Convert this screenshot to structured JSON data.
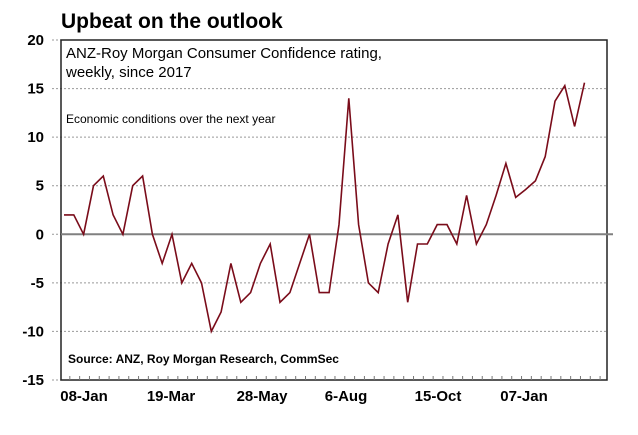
{
  "chart_data": {
    "type": "line",
    "title": "Upbeat on the outlook",
    "subtitle_lines": [
      "ANZ-Roy Morgan Consumer Confidence rating,",
      "weekly, since 2017"
    ],
    "annotation": "Economic conditions over the next year",
    "source": "Source: ANZ, Roy Morgan Research, CommSec",
    "xlabel": "",
    "ylabel": "",
    "ylim": [
      -15,
      20
    ],
    "yticks": [
      20,
      15,
      10,
      5,
      0,
      -5,
      -10,
      -15
    ],
    "ytick_labels": [
      "20",
      "15",
      "10",
      "5",
      "0",
      "-5",
      "-10",
      "-15"
    ],
    "xtick_labels": [
      "08-Jan",
      "19-Mar",
      "28-May",
      "6-Aug",
      "15-Oct",
      "07-Jan"
    ],
    "xtick_indices": [
      0,
      10,
      20,
      30,
      40,
      52
    ],
    "grid": true,
    "legend": "none",
    "colors": {
      "line": "#7a0c1a",
      "zero_line": "#808080",
      "grid": "#999999"
    },
    "series": [
      {
        "name": "Economic conditions over the next year",
        "values": [
          2,
          2,
          0,
          5,
          6,
          2,
          0,
          5,
          6,
          0,
          -3,
          0,
          -5,
          -3,
          -5,
          -10,
          -8,
          -3,
          -7,
          -6,
          -3,
          -1,
          -7,
          -6,
          -3,
          0,
          -6,
          -6,
          1,
          14,
          1,
          -5,
          -6,
          -1,
          2,
          -7,
          -1,
          -1,
          1,
          1,
          -1,
          4,
          -1,
          1,
          4,
          7.3,
          3.8,
          4.6,
          5.5,
          8,
          13.7,
          15.3,
          11.1,
          15.6
        ]
      }
    ]
  }
}
